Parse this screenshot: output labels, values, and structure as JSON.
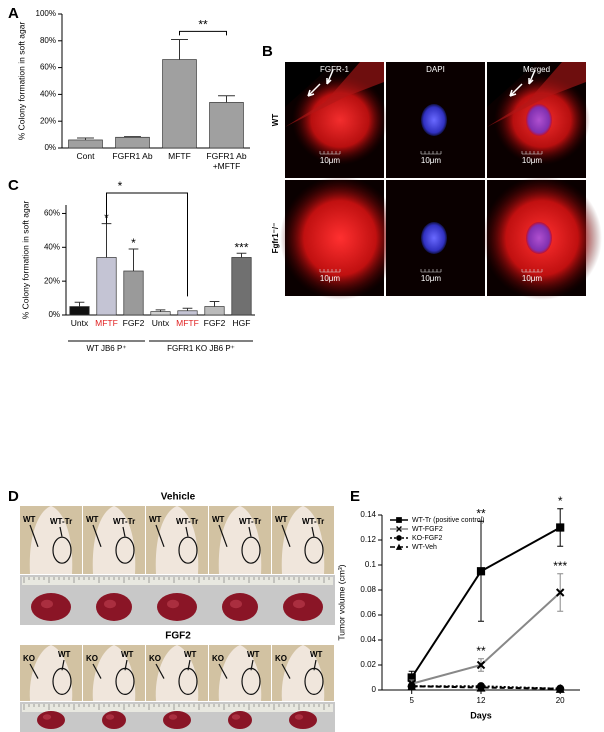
{
  "chart_data": [
    {
      "panel_label": "A",
      "type": "bar",
      "ylabel": "% Colony formation in soft agar",
      "categories": [
        "Cont",
        "FGFR1 Ab",
        "MFTF",
        "FGFR1 Ab +MFTF"
      ],
      "values": [
        6,
        8,
        66,
        34
      ],
      "errors": [
        1.5,
        0.5,
        15,
        5
      ],
      "colors": [
        "#a0a0a0",
        "#a0a0a0",
        "#a0a0a0",
        "#a0a0a0"
      ],
      "label_colors": [
        "#000000",
        "#000000",
        "#000000",
        "#000000"
      ],
      "ylim": [
        0,
        100
      ],
      "yticks": [
        {
          "value": 0,
          "label": "0%"
        },
        {
          "value": 20,
          "label": "20%"
        },
        {
          "value": 40,
          "label": "40%"
        },
        {
          "value": 60,
          "label": "60%"
        },
        {
          "value": 80,
          "label": "80%"
        },
        {
          "value": 100,
          "label": "100%"
        }
      ],
      "annotations": [
        "**"
      ]
    },
    {
      "panel_label": "C",
      "type": "bar",
      "ylabel": "% Colony formation in soft agar",
      "categories": [
        "Untx",
        "MFTF",
        "FGF2",
        "Untx",
        "MFTF",
        "FGF2",
        "HGF"
      ],
      "values": [
        5,
        34,
        26,
        2,
        2.5,
        5,
        34
      ],
      "errors": [
        2.5,
        20,
        13,
        1,
        1.5,
        3,
        2.5
      ],
      "colors": [
        "#111111",
        "#c4c4d4",
        "#9a9a9a",
        "#d0d0d0",
        "#c4c4d4",
        "#bbbbbb",
        "#707070"
      ],
      "label_colors": [
        "#000000",
        "#e02020",
        "#000000",
        "#000000",
        "#e02020",
        "#000000",
        "#000000"
      ],
      "groups": [
        "WT JB6 P⁺",
        "FGFR1 KO JB6 P⁺"
      ],
      "ylim": [
        0,
        65
      ],
      "yticks": [
        {
          "value": 0,
          "label": "0%"
        },
        {
          "value": 20,
          "label": "20%"
        },
        {
          "value": 40,
          "label": "40%"
        },
        {
          "value": 60,
          "label": "60%"
        }
      ],
      "annotations": [
        "*",
        "*",
        "***",
        "*"
      ]
    },
    {
      "panel_label": "E",
      "type": "line",
      "xlabel": "Days",
      "ylabel": "Tumor volume (cm³)",
      "x": [
        5,
        12,
        20
      ],
      "xlim": [
        2,
        22
      ],
      "xticks": [
        5,
        12,
        20
      ],
      "ylim": [
        0,
        0.14
      ],
      "yticks": [
        0,
        0.02,
        0.04,
        0.06,
        0.08,
        0.1,
        0.12,
        0.14
      ],
      "legend": "upper left",
      "series": [
        {
          "name": "WT-Tr (positive control)",
          "color": "#000000",
          "marker": "square",
          "dash": "solid",
          "values": [
            0.01,
            0.095,
            0.13
          ],
          "errors": [
            0.005,
            0.04,
            0.015
          ]
        },
        {
          "name": "WT-FGF2",
          "color": "#888888",
          "marker": "x",
          "dash": "solid",
          "values": [
            0.005,
            0.02,
            0.078
          ],
          "errors": [
            0.003,
            0.005,
            0.015
          ]
        },
        {
          "name": "KO-FGF2",
          "color": "#000000",
          "marker": "circle",
          "dash": "dotted",
          "values": [
            0.003,
            0.003,
            0.001
          ]
        },
        {
          "name": "WT-Veh",
          "color": "#000000",
          "marker": "triangle",
          "dash": "dashed",
          "values": [
            0.003,
            0.002,
            0.001
          ]
        }
      ],
      "annotations": [
        "**",
        "*",
        "***",
        "**"
      ]
    }
  ],
  "panel_b": {
    "label": "B",
    "columns": [
      "FGFR-1",
      "DAPI",
      "Merged"
    ],
    "rows": [
      "WT",
      "Fgfr1⁻/⁻"
    ],
    "scale_bars": [
      "10μm",
      "10μm",
      "10μm",
      "10μm",
      "10μm",
      "10μm"
    ]
  },
  "panel_d": {
    "label": "D",
    "groups": [
      {
        "title": "Vehicle",
        "mice": [
          [
            "WT",
            "WT-Tr"
          ],
          [
            "WT",
            "WT-Tr"
          ],
          [
            "WT",
            "WT-Tr"
          ],
          [
            "WT",
            "WT-Tr"
          ],
          [
            "WT",
            "WT-Tr"
          ]
        ]
      },
      {
        "title": "FGF2",
        "mice": [
          [
            "KO",
            "WT"
          ],
          [
            "KO",
            "WT"
          ],
          [
            "KO",
            "WT"
          ],
          [
            "KO",
            "WT"
          ],
          [
            "KO",
            "WT"
          ]
        ]
      }
    ]
  }
}
